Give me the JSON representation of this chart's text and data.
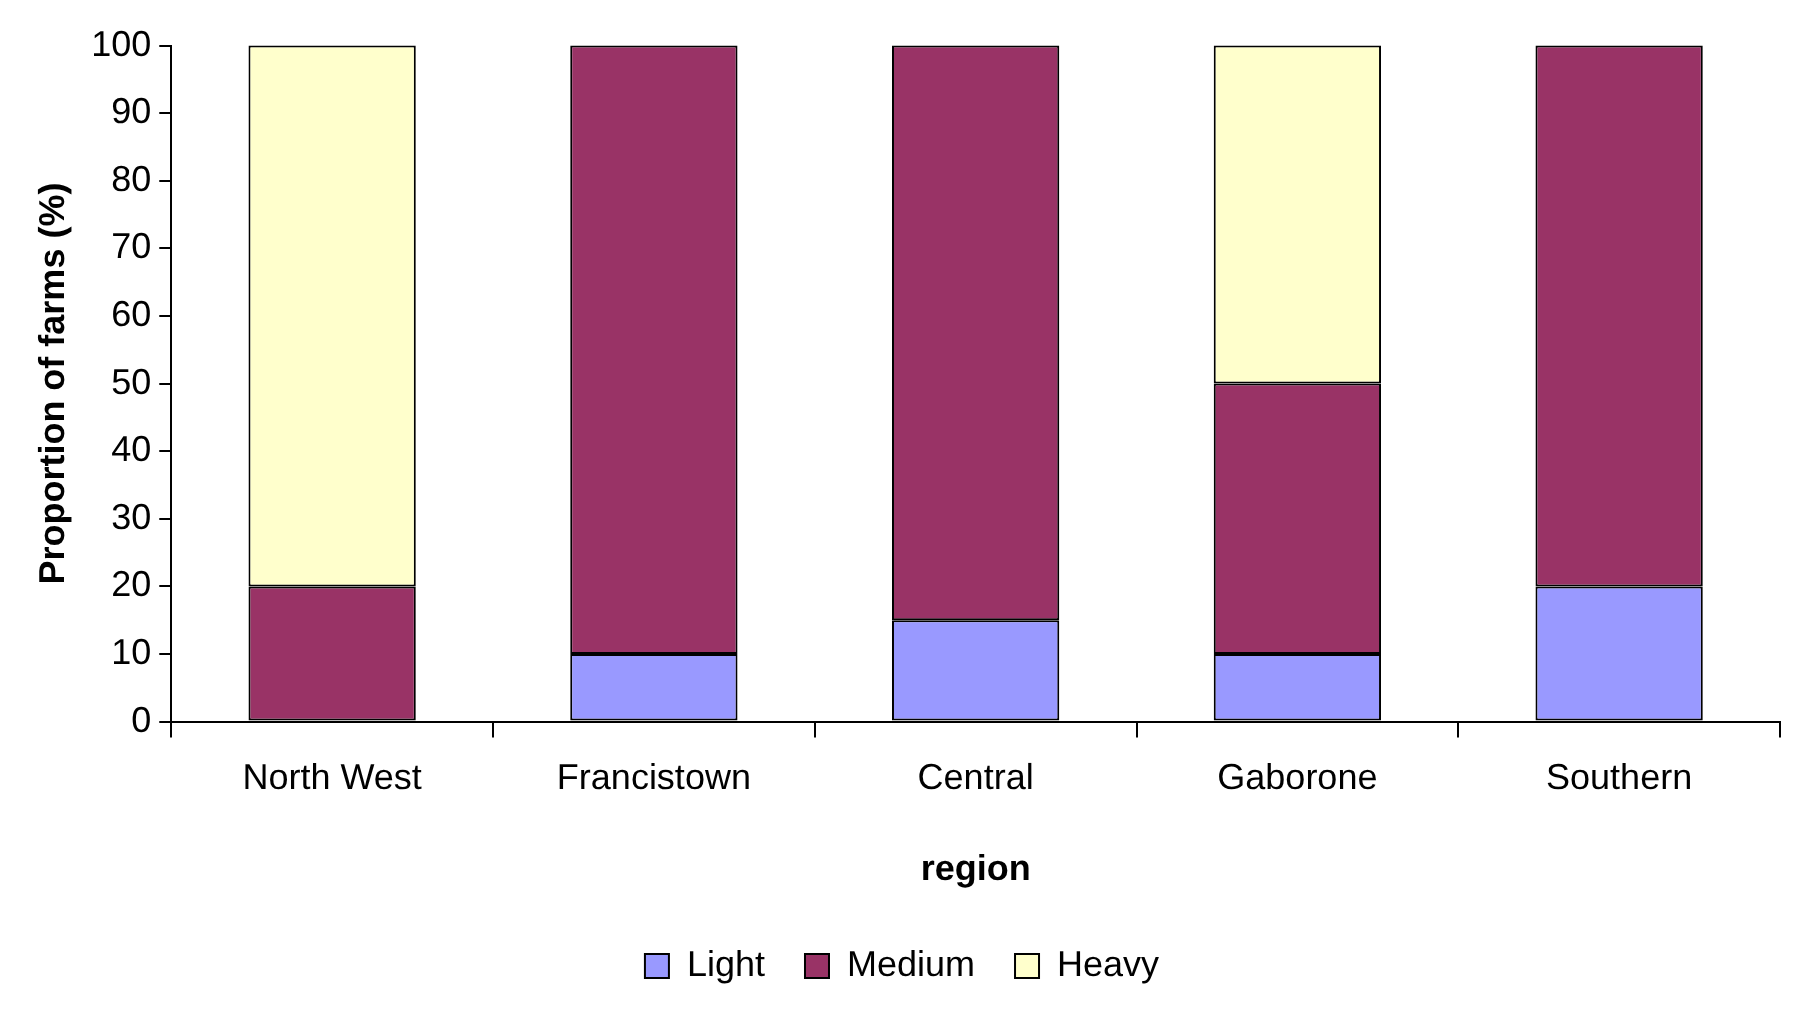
{
  "chart_data": {
    "type": "bar",
    "stacked": true,
    "xlabel": "region",
    "ylabel": "Proportion of farms (%)",
    "categories": [
      "North West",
      "Francistown",
      "Central",
      "Gaborone",
      "Southern"
    ],
    "series": [
      {
        "name": "Light",
        "color": "#9999ff",
        "values": [
          0,
          10,
          15,
          10,
          20
        ]
      },
      {
        "name": "Medium",
        "color": "#993366",
        "values": [
          20,
          90,
          85,
          40,
          80
        ]
      },
      {
        "name": "Heavy",
        "color": "#ffffcc",
        "values": [
          80,
          0,
          0,
          50,
          0
        ]
      }
    ],
    "ylim": [
      0,
      100
    ],
    "yticks": [
      0,
      10,
      20,
      30,
      40,
      50,
      60,
      70,
      80,
      90,
      100
    ],
    "grid": false,
    "legend": "bottom"
  }
}
